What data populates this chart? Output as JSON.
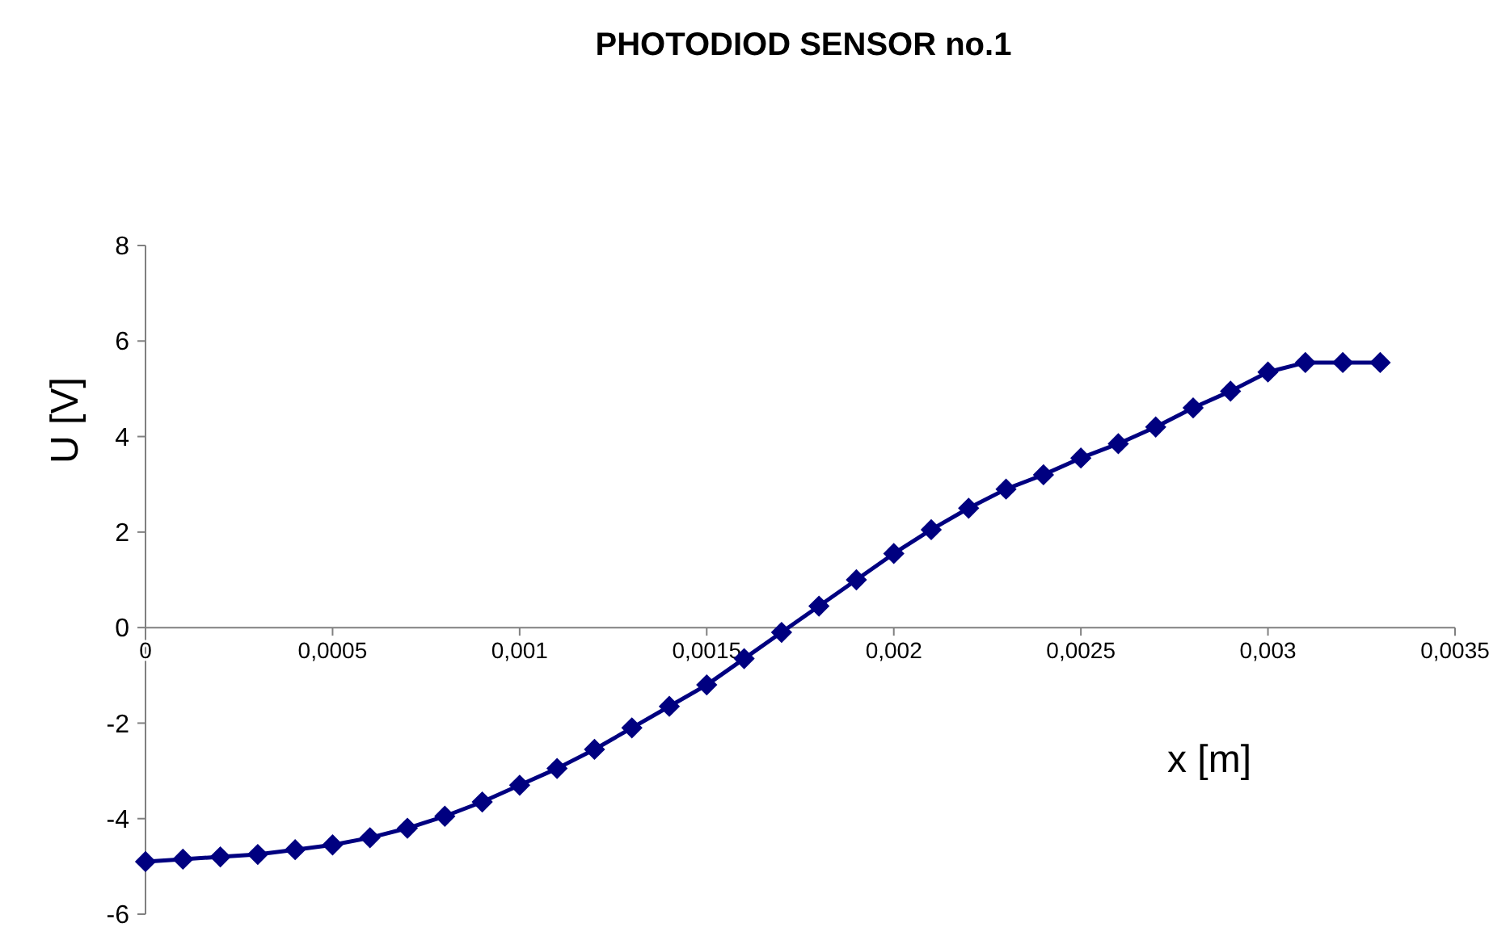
{
  "chart_data": {
    "type": "line",
    "title": "PHOTODIOD SENSOR no.1",
    "xlabel": "x [m]",
    "ylabel": "U [V]",
    "x": [
      0,
      0.0001,
      0.0002,
      0.0003,
      0.0004,
      0.0005,
      0.0006,
      0.0007,
      0.0008,
      0.0009,
      0.001,
      0.0011,
      0.0012,
      0.0013,
      0.0014,
      0.0015,
      0.0016,
      0.0017,
      0.0018,
      0.0019,
      0.002,
      0.0021,
      0.0022,
      0.0023,
      0.0024,
      0.0025,
      0.0026,
      0.0027,
      0.0028,
      0.0029,
      0.003,
      0.0031,
      0.0032,
      0.0033
    ],
    "series": [
      {
        "color": "#000080",
        "values": [
          -4.9,
          -4.85,
          -4.8,
          -4.75,
          -4.65,
          -4.55,
          -4.4,
          -4.2,
          -3.95,
          -3.65,
          -3.3,
          -2.95,
          -2.55,
          -2.1,
          -1.65,
          -1.2,
          -0.65,
          -0.1,
          0.45,
          1.0,
          1.55,
          2.05,
          2.5,
          2.9,
          3.2,
          3.55,
          3.85,
          4.2,
          4.6,
          4.95,
          5.35,
          5.55,
          5.55,
          5.55
        ]
      }
    ],
    "xlim": [
      0,
      0.0035
    ],
    "xticks": [
      {
        "value": 0,
        "label": "0"
      },
      {
        "value": 0.0005,
        "label": "0,0005"
      },
      {
        "value": 0.001,
        "label": "0,001"
      },
      {
        "value": 0.0015,
        "label": "0,0015"
      },
      {
        "value": 0.002,
        "label": "0,002"
      },
      {
        "value": 0.0025,
        "label": "0,0025"
      },
      {
        "value": 0.003,
        "label": "0,003"
      },
      {
        "value": 0.0035,
        "label": "0,0035"
      }
    ],
    "ylim": [
      -6,
      8
    ],
    "yticks": [
      -6,
      -4,
      -2,
      0,
      2,
      4,
      6,
      8
    ],
    "marker": "diamond",
    "line_style": "solid"
  }
}
